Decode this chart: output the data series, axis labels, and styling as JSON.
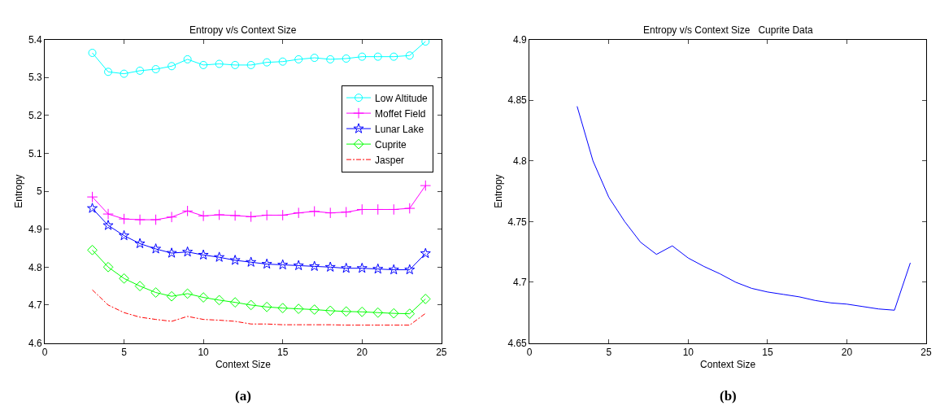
{
  "chart_data": [
    {
      "type": "line",
      "title": "Entropy v/s Context Size",
      "xlabel": "Context Size",
      "ylabel": "Entropy",
      "x": [
        3,
        4,
        5,
        6,
        7,
        8,
        9,
        10,
        11,
        12,
        13,
        14,
        15,
        16,
        17,
        18,
        19,
        20,
        21,
        22,
        23,
        24
      ],
      "xlim": [
        0,
        25
      ],
      "xticks": [
        0,
        5,
        10,
        15,
        20,
        25
      ],
      "ylim": [
        4.6,
        5.4
      ],
      "yticks": [
        4.6,
        4.7,
        4.8,
        4.9,
        5,
        5.1,
        5.2,
        5.3,
        5.4
      ],
      "legend": "top right",
      "annotations": [
        "(a)"
      ],
      "series": [
        {
          "name": "Low Altitude",
          "color": "#00ffff",
          "marker": "circle",
          "line_style": "solid",
          "values": [
            5.365,
            5.315,
            5.31,
            5.318,
            5.322,
            5.33,
            5.348,
            5.333,
            5.336,
            5.333,
            5.333,
            5.34,
            5.342,
            5.348,
            5.352,
            5.348,
            5.35,
            5.355,
            5.355,
            5.355,
            5.358,
            5.395
          ]
        },
        {
          "name": "Moffet Field",
          "color": "#ff00ff",
          "marker": "cross",
          "line_style": "solid",
          "values": [
            4.985,
            4.94,
            4.927,
            4.925,
            4.925,
            4.932,
            4.948,
            4.935,
            4.938,
            4.936,
            4.933,
            4.937,
            4.937,
            4.943,
            4.947,
            4.943,
            4.945,
            4.952,
            4.952,
            4.952,
            4.955,
            5.015
          ]
        },
        {
          "name": "Lunar Lake",
          "color": "#0000ff",
          "marker": "star",
          "line_style": "solid",
          "values": [
            4.955,
            4.91,
            4.883,
            4.862,
            4.848,
            4.837,
            4.84,
            4.832,
            4.826,
            4.818,
            4.813,
            4.808,
            4.806,
            4.804,
            4.802,
            4.8,
            4.797,
            4.797,
            4.795,
            4.793,
            4.793,
            4.836
          ]
        },
        {
          "name": "Cuprite",
          "color": "#00ff00",
          "marker": "diamond",
          "line_style": "solid",
          "values": [
            4.845,
            4.8,
            4.77,
            4.75,
            4.733,
            4.723,
            4.73,
            4.72,
            4.713,
            4.707,
            4.7,
            4.695,
            4.692,
            4.69,
            4.688,
            4.685,
            4.683,
            4.682,
            4.68,
            4.678,
            4.677,
            4.716
          ]
        },
        {
          "name": "Jasper",
          "color": "#ff0000",
          "marker": "none",
          "line_style": "dashed",
          "values": [
            4.74,
            4.7,
            4.68,
            4.668,
            4.662,
            4.657,
            4.67,
            4.662,
            4.66,
            4.657,
            4.65,
            4.65,
            4.648,
            4.648,
            4.648,
            4.648,
            4.647,
            4.647,
            4.647,
            4.647,
            4.647,
            4.678
          ]
        }
      ]
    },
    {
      "type": "line",
      "title": "Entropy v/s Context Size   Cuprite Data",
      "xlabel": "Context Size",
      "ylabel": "Entropy",
      "x": [
        3,
        4,
        5,
        6,
        7,
        8,
        9,
        10,
        11,
        12,
        13,
        14,
        15,
        16,
        17,
        18,
        19,
        20,
        21,
        22,
        23,
        24
      ],
      "xlim": [
        0,
        25
      ],
      "xticks": [
        0,
        5,
        10,
        15,
        20,
        25
      ],
      "ylim": [
        4.65,
        4.9
      ],
      "yticks": [
        4.65,
        4.7,
        4.75,
        4.8,
        4.85,
        4.9
      ],
      "annotations": [
        "(b)"
      ],
      "series": [
        {
          "color": "#0000ff",
          "line_style": "solid",
          "values": [
            4.845,
            4.8,
            4.77,
            4.75,
            4.733,
            4.723,
            4.73,
            4.72,
            4.713,
            4.707,
            4.7,
            4.695,
            4.692,
            4.69,
            4.688,
            4.685,
            4.683,
            4.682,
            4.68,
            4.678,
            4.677,
            4.716
          ]
        }
      ]
    }
  ]
}
